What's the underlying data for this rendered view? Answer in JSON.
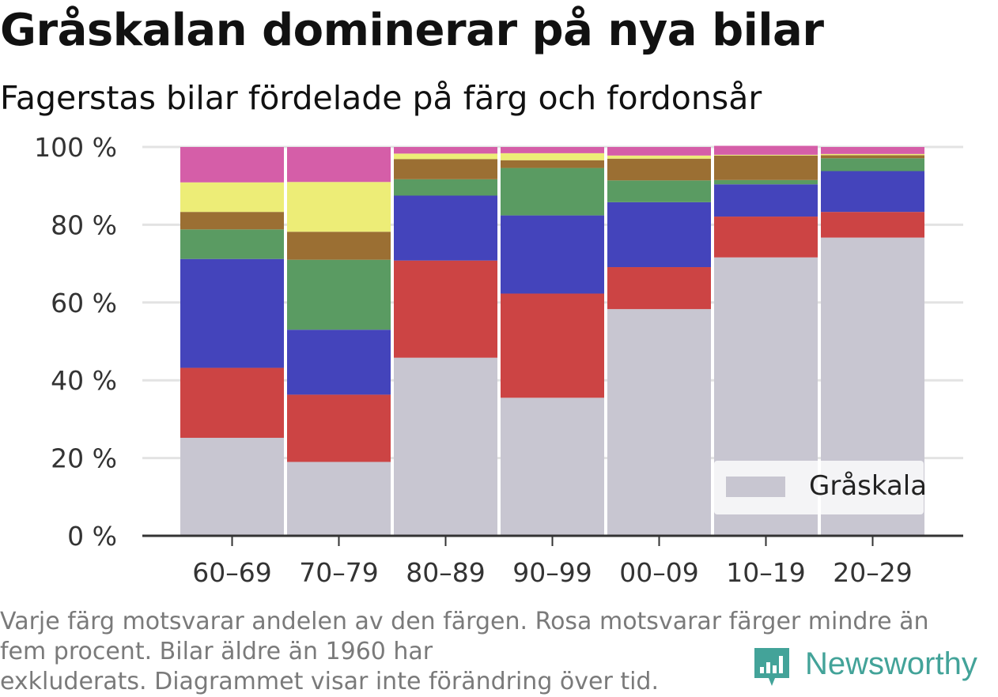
{
  "title": "Gråskalan dominerar på nya bilar",
  "subtitle": "Fagerstas bilar fördelade på färg och fordonsår",
  "footnote": {
    "line1": "Varje färg motsvarar andelen av den färgen. Rosa motsvarar färger mindre än",
    "line2": "fem procent. Bilar äldre än 1960 har",
    "line3": "exkluderats. Diagrammet visar inte förändring över tid."
  },
  "logo": {
    "text": "Newsworthy",
    "color": "#43a399"
  },
  "legend": {
    "label": "Gråskala",
    "color": "#c8c6d1",
    "position": "bottom-right"
  },
  "chart_data": {
    "type": "bar",
    "stacked": true,
    "categories": [
      "60–69",
      "70–79",
      "80–89",
      "90–99",
      "00–09",
      "10–19",
      "20–29"
    ],
    "ylim": [
      0,
      100
    ],
    "yticks": [
      0,
      20,
      40,
      60,
      80,
      100
    ],
    "ytick_labels": [
      "0 %",
      "20 %",
      "40 %",
      "60 %",
      "80 %",
      "100 %"
    ],
    "grid": true,
    "series": [
      {
        "name": "Gråskala",
        "color": "#c8c6d1",
        "values": [
          25.2,
          19.0,
          45.8,
          35.5,
          58.3,
          71.6,
          76.7
        ]
      },
      {
        "color": "#cc4444",
        "values": [
          18.0,
          17.3,
          25.0,
          26.8,
          10.8,
          10.5,
          6.6
        ]
      },
      {
        "color": "#4444bb",
        "values": [
          28.0,
          16.7,
          16.7,
          20.1,
          16.7,
          8.3,
          10.5
        ]
      },
      {
        "color": "#5a9b62",
        "values": [
          7.6,
          18.0,
          4.2,
          12.2,
          5.6,
          1.1,
          3.3
        ]
      },
      {
        "color": "#9b6f33",
        "values": [
          4.5,
          7.2,
          5.2,
          2.0,
          5.6,
          6.3,
          0.8
        ]
      },
      {
        "color": "#eded77",
        "values": [
          7.6,
          12.8,
          1.4,
          1.8,
          0.8,
          0.2,
          0.3
        ]
      },
      {
        "color": "#d55ea8",
        "values": [
          9.1,
          9.0,
          1.7,
          1.6,
          2.2,
          2.3,
          1.8
        ]
      }
    ]
  }
}
